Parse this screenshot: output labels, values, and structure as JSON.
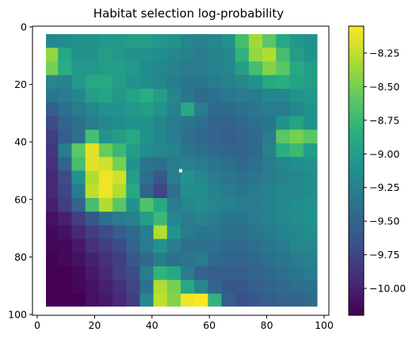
{
  "chart_data": {
    "type": "heatmap",
    "title": "Habitat selection log-probability",
    "xlabel": "",
    "ylabel": "",
    "grid": false,
    "x_axis": {
      "range": [
        0,
        100
      ],
      "ticks": [
        0,
        20,
        40,
        60,
        80,
        100
      ],
      "tick_labels": [
        "0",
        "20",
        "40",
        "60",
        "80",
        "100"
      ]
    },
    "y_axis": {
      "range": [
        0,
        100
      ],
      "inverted": true,
      "ticks": [
        0,
        20,
        40,
        60,
        80,
        100
      ],
      "tick_labels": [
        "0",
        "20",
        "40",
        "60",
        "80",
        "100"
      ]
    },
    "data_extent": {
      "x": [
        2.5,
        97.5
      ],
      "y": [
        2.5,
        97.5
      ]
    },
    "colormap": "viridis",
    "colorbar": {
      "range": [
        -10.2,
        -8.05
      ],
      "ticks": [
        -10.0,
        -9.75,
        -9.5,
        -9.25,
        -9.0,
        -8.75,
        -8.5,
        -8.25
      ],
      "tick_labels": [
        "−10.00",
        "−9.75",
        "−9.50",
        "−9.25",
        "−9.00",
        "−8.75",
        "−8.50",
        "−8.25"
      ]
    },
    "marker": {
      "x": 50,
      "y": 50,
      "color": "#ffffff"
    },
    "grid_size": 20,
    "z_values": [
      [
        -9.2,
        -9.15,
        -9.1,
        -9.1,
        -9.05,
        -9.05,
        -9.0,
        -9.0,
        -9.05,
        -9.1,
        -9.2,
        -9.25,
        -9.2,
        -9.1,
        -8.7,
        -8.35,
        -8.6,
        -8.9,
        -9.05,
        -9.1
      ],
      [
        -8.4,
        -8.9,
        -9.1,
        -9.1,
        -9.0,
        -9.05,
        -9.1,
        -9.1,
        -9.15,
        -9.2,
        -9.25,
        -9.3,
        -9.25,
        -9.2,
        -8.8,
        -8.4,
        -8.3,
        -8.7,
        -9.0,
        -9.1
      ],
      [
        -8.5,
        -8.85,
        -9.05,
        -9.05,
        -9.0,
        -9.0,
        -9.05,
        -9.15,
        -9.2,
        -9.25,
        -9.3,
        -9.3,
        -9.25,
        -9.2,
        -9.0,
        -8.7,
        -8.45,
        -8.6,
        -8.9,
        -9.0
      ],
      [
        -9.2,
        -9.25,
        -9.05,
        -8.9,
        -8.9,
        -9.0,
        -9.1,
        -9.15,
        -9.2,
        -9.3,
        -9.35,
        -9.35,
        -9.3,
        -9.25,
        -9.2,
        -9.1,
        -8.9,
        -8.85,
        -8.95,
        -9.0
      ],
      [
        -9.35,
        -9.3,
        -9.2,
        -9.0,
        -8.95,
        -9.05,
        -8.95,
        -8.85,
        -9.0,
        -9.2,
        -9.35,
        -9.45,
        -9.4,
        -9.35,
        -9.3,
        -9.3,
        -9.2,
        -9.2,
        -9.1,
        -9.05
      ],
      [
        -9.55,
        -9.4,
        -9.3,
        -9.2,
        -9.1,
        -9.1,
        -9.05,
        -9.0,
        -9.1,
        -9.25,
        -8.9,
        -9.3,
        -9.45,
        -9.45,
        -9.4,
        -9.35,
        -9.3,
        -9.3,
        -9.2,
        -9.1
      ],
      [
        -9.7,
        -9.5,
        -9.4,
        -9.3,
        -9.2,
        -9.15,
        -9.1,
        -9.1,
        -9.2,
        -9.3,
        -9.35,
        -9.4,
        -9.5,
        -9.5,
        -9.45,
        -9.4,
        -9.35,
        -9.1,
        -8.95,
        -9.1
      ],
      [
        -9.8,
        -9.55,
        -9.4,
        -8.7,
        -9.1,
        -9.0,
        -8.9,
        -9.1,
        -9.2,
        -9.3,
        -9.4,
        -9.45,
        -9.5,
        -9.55,
        -9.5,
        -9.45,
        -9.3,
        -8.6,
        -8.5,
        -8.6
      ],
      [
        -9.85,
        -9.3,
        -8.6,
        -8.15,
        -8.55,
        -8.75,
        -9.0,
        -9.15,
        -9.2,
        -9.25,
        -9.35,
        -9.4,
        -9.45,
        -9.5,
        -9.5,
        -9.45,
        -9.25,
        -8.85,
        -8.75,
        -9.0
      ],
      [
        -9.9,
        -9.5,
        -8.7,
        -8.15,
        -8.2,
        -8.5,
        -9.1,
        -9.35,
        -9.4,
        -9.3,
        -9.25,
        -9.3,
        -9.35,
        -9.4,
        -9.45,
        -9.4,
        -9.3,
        -9.2,
        -9.15,
        -9.1
      ],
      [
        -9.95,
        -9.7,
        -9.1,
        -8.3,
        -8.1,
        -8.2,
        -9.0,
        -9.4,
        -9.6,
        -9.3,
        -9.1,
        -9.2,
        -9.3,
        -9.35,
        -9.4,
        -9.35,
        -9.3,
        -9.25,
        -9.2,
        -9.15
      ],
      [
        -9.95,
        -9.75,
        -9.3,
        -8.25,
        -8.1,
        -8.3,
        -8.9,
        -9.5,
        -9.75,
        -9.4,
        -9.15,
        -9.15,
        -9.25,
        -9.3,
        -9.35,
        -9.3,
        -9.25,
        -9.2,
        -9.2,
        -9.15
      ],
      [
        -10.0,
        -9.8,
        -9.5,
        -8.7,
        -8.3,
        -8.6,
        -9.1,
        -8.65,
        -8.9,
        -9.3,
        -9.2,
        -9.15,
        -9.2,
        -9.25,
        -9.3,
        -9.3,
        -9.25,
        -9.2,
        -9.15,
        -9.1
      ],
      [
        -10.1,
        -10.0,
        -9.8,
        -9.6,
        -9.4,
        -9.3,
        -9.25,
        -9.0,
        -8.75,
        -9.2,
        -9.3,
        -9.25,
        -9.3,
        -9.35,
        -9.35,
        -9.3,
        -9.25,
        -9.2,
        -9.15,
        -9.1
      ],
      [
        -10.15,
        -10.1,
        -9.95,
        -9.8,
        -9.7,
        -9.55,
        -9.45,
        -9.3,
        -8.3,
        -9.1,
        -9.3,
        -9.35,
        -9.35,
        -9.4,
        -9.4,
        -9.35,
        -9.3,
        -9.25,
        -9.2,
        -9.15
      ],
      [
        -10.15,
        -10.15,
        -10.05,
        -9.9,
        -9.8,
        -9.7,
        -9.5,
        -9.3,
        -9.1,
        -9.3,
        -9.4,
        -9.4,
        -9.4,
        -9.45,
        -9.45,
        -9.4,
        -9.35,
        -9.3,
        -9.2,
        -9.2
      ],
      [
        -10.2,
        -10.15,
        -10.1,
        -10.0,
        -9.9,
        -9.8,
        -9.6,
        -9.45,
        -9.3,
        -9.4,
        -9.35,
        -9.3,
        -9.45,
        -9.5,
        -9.5,
        -9.45,
        -9.4,
        -9.35,
        -9.3,
        -9.25
      ],
      [
        -10.2,
        -10.2,
        -10.15,
        -10.05,
        -9.95,
        -9.8,
        -9.7,
        -9.3,
        -8.8,
        -8.9,
        -9.3,
        -9.5,
        -9.55,
        -9.55,
        -9.55,
        -9.5,
        -9.45,
        -9.4,
        -9.35,
        -9.3
      ],
      [
        -10.2,
        -10.2,
        -10.15,
        -10.1,
        -10.0,
        -9.9,
        -9.75,
        -9.4,
        -8.3,
        -8.5,
        -8.9,
        -9.2,
        -9.5,
        -9.6,
        -9.6,
        -9.55,
        -9.5,
        -9.45,
        -9.4,
        -9.4
      ],
      [
        -10.2,
        -10.2,
        -10.2,
        -10.1,
        -10.05,
        -9.95,
        -9.8,
        -9.2,
        -8.25,
        -8.45,
        -8.1,
        -8.05,
        -8.8,
        -9.55,
        -9.65,
        -9.6,
        -9.55,
        -9.5,
        -9.5,
        -9.45
      ]
    ]
  }
}
